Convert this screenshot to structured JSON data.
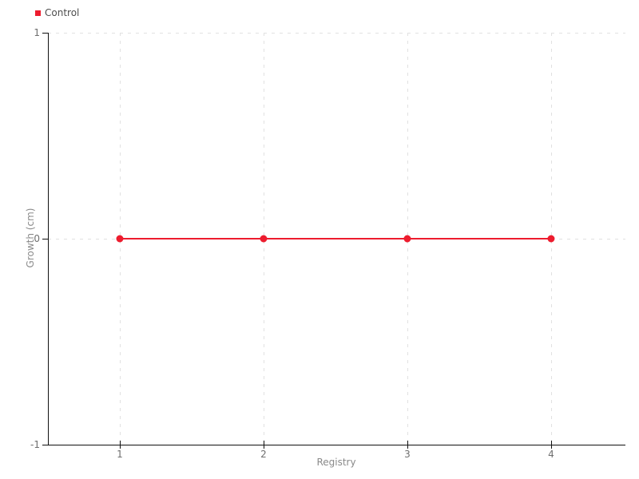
{
  "legend": {
    "items": [
      {
        "label": "Control",
        "color": "#ed1c2e"
      }
    ]
  },
  "chart_data": {
    "type": "line",
    "title": "",
    "xlabel": "Registry",
    "ylabel": "Growth (cm)",
    "x": [
      1,
      2,
      3,
      4
    ],
    "series": [
      {
        "name": "Control",
        "color": "#ed1c2e",
        "values": [
          0,
          0,
          0,
          0
        ]
      }
    ],
    "xticks": [
      1,
      2,
      3,
      4
    ],
    "yticks": [
      1,
      0,
      -1
    ],
    "xlim": [
      0.5,
      4.517
    ],
    "ylim": [
      -1,
      1
    ],
    "grid": "dashed",
    "legend_position": "top-left",
    "marker": "circle"
  },
  "colors": {
    "accent": "#ed1c2e",
    "grid": "#e1e1e1",
    "axis": "#111111",
    "tick_label": "#6f6f6f",
    "axis_title": "#8a8a8a",
    "legend_text": "#4d4d4d",
    "background": "#ffffff"
  }
}
